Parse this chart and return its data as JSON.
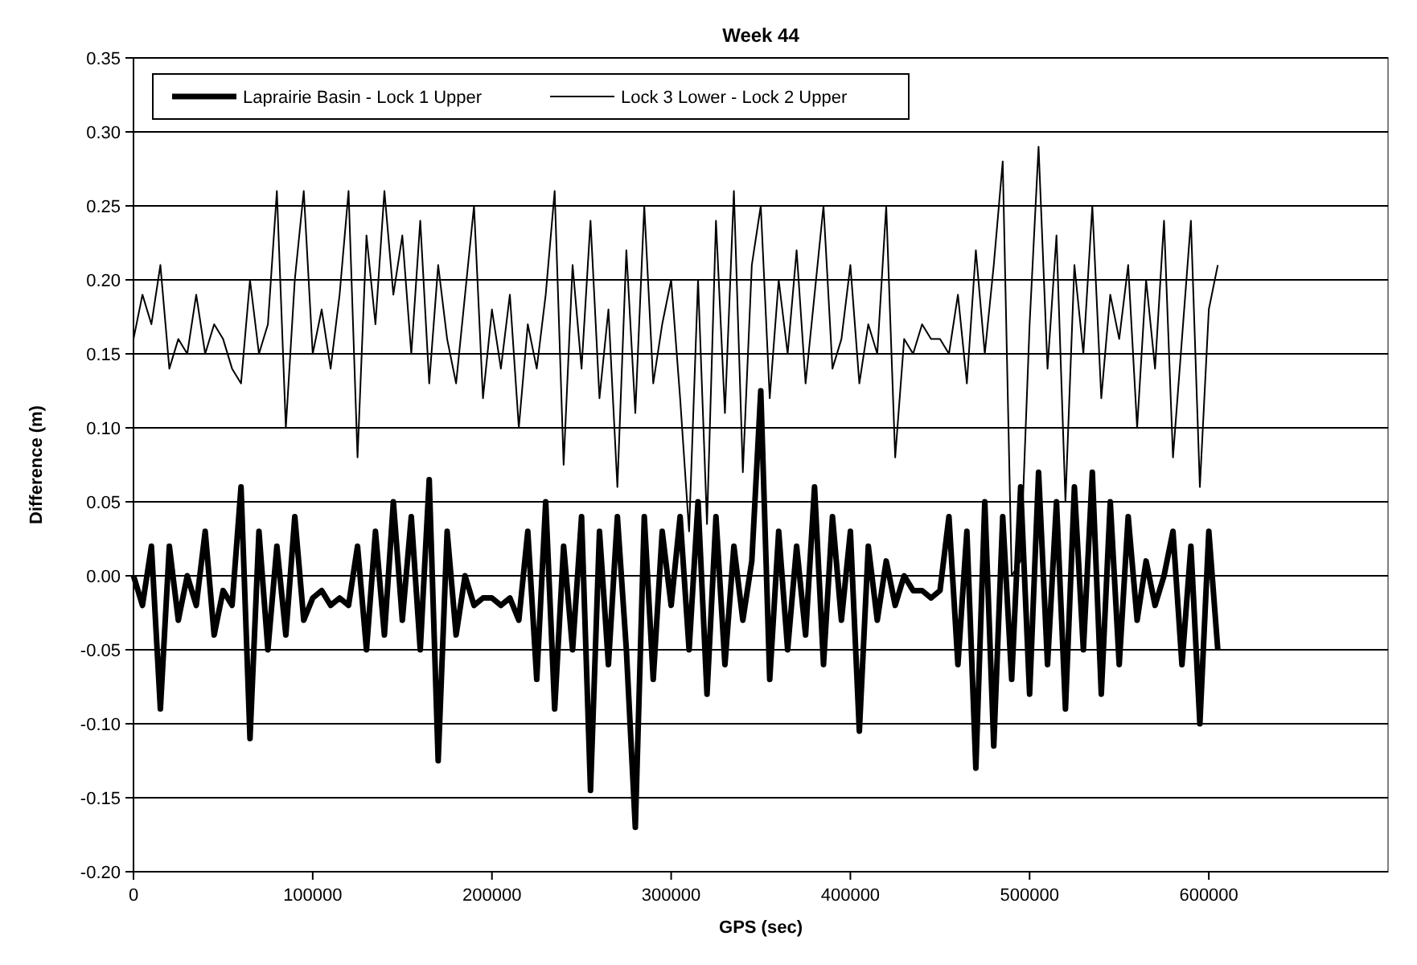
{
  "chart_data": {
    "type": "line",
    "title": "Week 44",
    "xlabel": "GPS (sec)",
    "ylabel": "Difference (m)",
    "x": [
      0,
      5000,
      10000,
      15000,
      20000,
      25000,
      30000,
      35000,
      40000,
      45000,
      50000,
      55000,
      60000,
      65000,
      70000,
      75000,
      80000,
      85000,
      90000,
      95000,
      100000,
      105000,
      110000,
      115000,
      120000,
      125000,
      130000,
      135000,
      140000,
      145000,
      150000,
      155000,
      160000,
      165000,
      170000,
      175000,
      180000,
      185000,
      190000,
      195000,
      200000,
      205000,
      210000,
      215000,
      220000,
      225000,
      230000,
      235000,
      240000,
      245000,
      250000,
      255000,
      260000,
      265000,
      270000,
      275000,
      280000,
      285000,
      290000,
      295000,
      300000,
      305000,
      310000,
      315000,
      320000,
      325000,
      330000,
      335000,
      340000,
      345000,
      350000,
      355000,
      360000,
      365000,
      370000,
      375000,
      380000,
      385000,
      390000,
      395000,
      400000,
      405000,
      410000,
      415000,
      420000,
      425000,
      430000,
      435000,
      440000,
      445000,
      450000,
      455000,
      460000,
      465000,
      470000,
      475000,
      480000,
      485000,
      490000,
      495000,
      500000,
      505000,
      510000,
      515000,
      520000,
      525000,
      530000,
      535000,
      540000,
      545000,
      550000,
      555000,
      560000,
      565000,
      570000,
      575000,
      580000,
      585000,
      590000,
      595000,
      600000,
      605000
    ],
    "series": [
      {
        "name": "Laprairie Basin - Lock 1 Upper",
        "color": "#000000",
        "values": [
          0.0,
          -0.02,
          0.02,
          -0.09,
          0.02,
          -0.03,
          0.0,
          -0.02,
          0.03,
          -0.04,
          -0.01,
          -0.02,
          0.06,
          -0.11,
          0.03,
          -0.05,
          0.02,
          -0.04,
          0.04,
          -0.03,
          -0.015,
          -0.01,
          -0.02,
          -0.015,
          -0.02,
          0.02,
          -0.05,
          0.03,
          -0.04,
          0.05,
          -0.03,
          0.04,
          -0.05,
          0.065,
          -0.125,
          0.03,
          -0.04,
          0.0,
          -0.02,
          -0.015,
          -0.015,
          -0.02,
          -0.015,
          -0.03,
          0.03,
          -0.07,
          0.05,
          -0.09,
          0.02,
          -0.05,
          0.04,
          -0.145,
          0.03,
          -0.06,
          0.04,
          -0.05,
          -0.17,
          0.04,
          -0.07,
          0.03,
          -0.02,
          0.04,
          -0.05,
          0.05,
          -0.08,
          0.04,
          -0.06,
          0.02,
          -0.03,
          0.01,
          0.125,
          -0.07,
          0.03,
          -0.05,
          0.02,
          -0.04,
          0.06,
          -0.06,
          0.04,
          -0.03,
          0.03,
          -0.105,
          0.02,
          -0.03,
          0.01,
          -0.02,
          0.0,
          -0.01,
          -0.01,
          -0.015,
          -0.01,
          0.04,
          -0.06,
          0.03,
          -0.13,
          0.05,
          -0.115,
          0.04,
          -0.07,
          0.06,
          -0.08,
          0.07,
          -0.06,
          0.05,
          -0.09,
          0.06,
          -0.05,
          0.07,
          -0.08,
          0.05,
          -0.06,
          0.04,
          -0.03,
          0.01,
          -0.02,
          0.0,
          0.03,
          -0.06,
          0.02,
          -0.1,
          0.03,
          -0.05
        ]
      },
      {
        "name": "Lock 3 Lower - Lock 2 Upper",
        "color": "#000000",
        "values": [
          0.16,
          0.19,
          0.17,
          0.21,
          0.14,
          0.16,
          0.15,
          0.19,
          0.15,
          0.17,
          0.16,
          0.14,
          0.13,
          0.2,
          0.15,
          0.17,
          0.26,
          0.1,
          0.2,
          0.26,
          0.15,
          0.18,
          0.14,
          0.19,
          0.26,
          0.08,
          0.23,
          0.17,
          0.26,
          0.19,
          0.23,
          0.15,
          0.24,
          0.13,
          0.21,
          0.16,
          0.13,
          0.19,
          0.25,
          0.12,
          0.18,
          0.14,
          0.19,
          0.1,
          0.17,
          0.14,
          0.19,
          0.26,
          0.075,
          0.21,
          0.14,
          0.24,
          0.12,
          0.18,
          0.06,
          0.22,
          0.11,
          0.25,
          0.13,
          0.17,
          0.2,
          0.12,
          0.03,
          0.2,
          0.035,
          0.24,
          0.11,
          0.26,
          0.07,
          0.21,
          0.25,
          0.12,
          0.2,
          0.15,
          0.22,
          0.13,
          0.19,
          0.25,
          0.14,
          0.16,
          0.21,
          0.13,
          0.17,
          0.15,
          0.25,
          0.08,
          0.16,
          0.15,
          0.17,
          0.16,
          0.16,
          0.15,
          0.19,
          0.13,
          0.22,
          0.15,
          0.21,
          0.28,
          0.0,
          0.01,
          0.17,
          0.29,
          0.14,
          0.23,
          0.05,
          0.21,
          0.15,
          0.25,
          0.12,
          0.19,
          0.16,
          0.21,
          0.1,
          0.2,
          0.14,
          0.24,
          0.08,
          0.16,
          0.24,
          0.06,
          0.18,
          0.21
        ]
      }
    ],
    "xlim": [
      0,
      700000
    ],
    "xticks": [
      0,
      100000,
      200000,
      300000,
      400000,
      500000,
      600000
    ],
    "ylim": [
      -0.2,
      0.35
    ],
    "yticks": [
      {
        "value": -0.2,
        "label": "-0.20"
      },
      {
        "value": -0.15,
        "label": "-0.15"
      },
      {
        "value": -0.1,
        "label": "-0.10"
      },
      {
        "value": -0.05,
        "label": "-0.05"
      },
      {
        "value": 0,
        "label": "0.00"
      },
      {
        "value": 0.05,
        "label": "0.05"
      },
      {
        "value": 0.1,
        "label": "0.10"
      },
      {
        "value": 0.15,
        "label": "0.15"
      },
      {
        "value": 0.2,
        "label": "0.20"
      },
      {
        "value": 0.25,
        "label": "0.25"
      },
      {
        "value": 0.3,
        "label": "0.30"
      },
      {
        "value": 0.35,
        "label": "0.35"
      }
    ],
    "grid": "y",
    "legend": "top left",
    "line_style": "solid"
  }
}
